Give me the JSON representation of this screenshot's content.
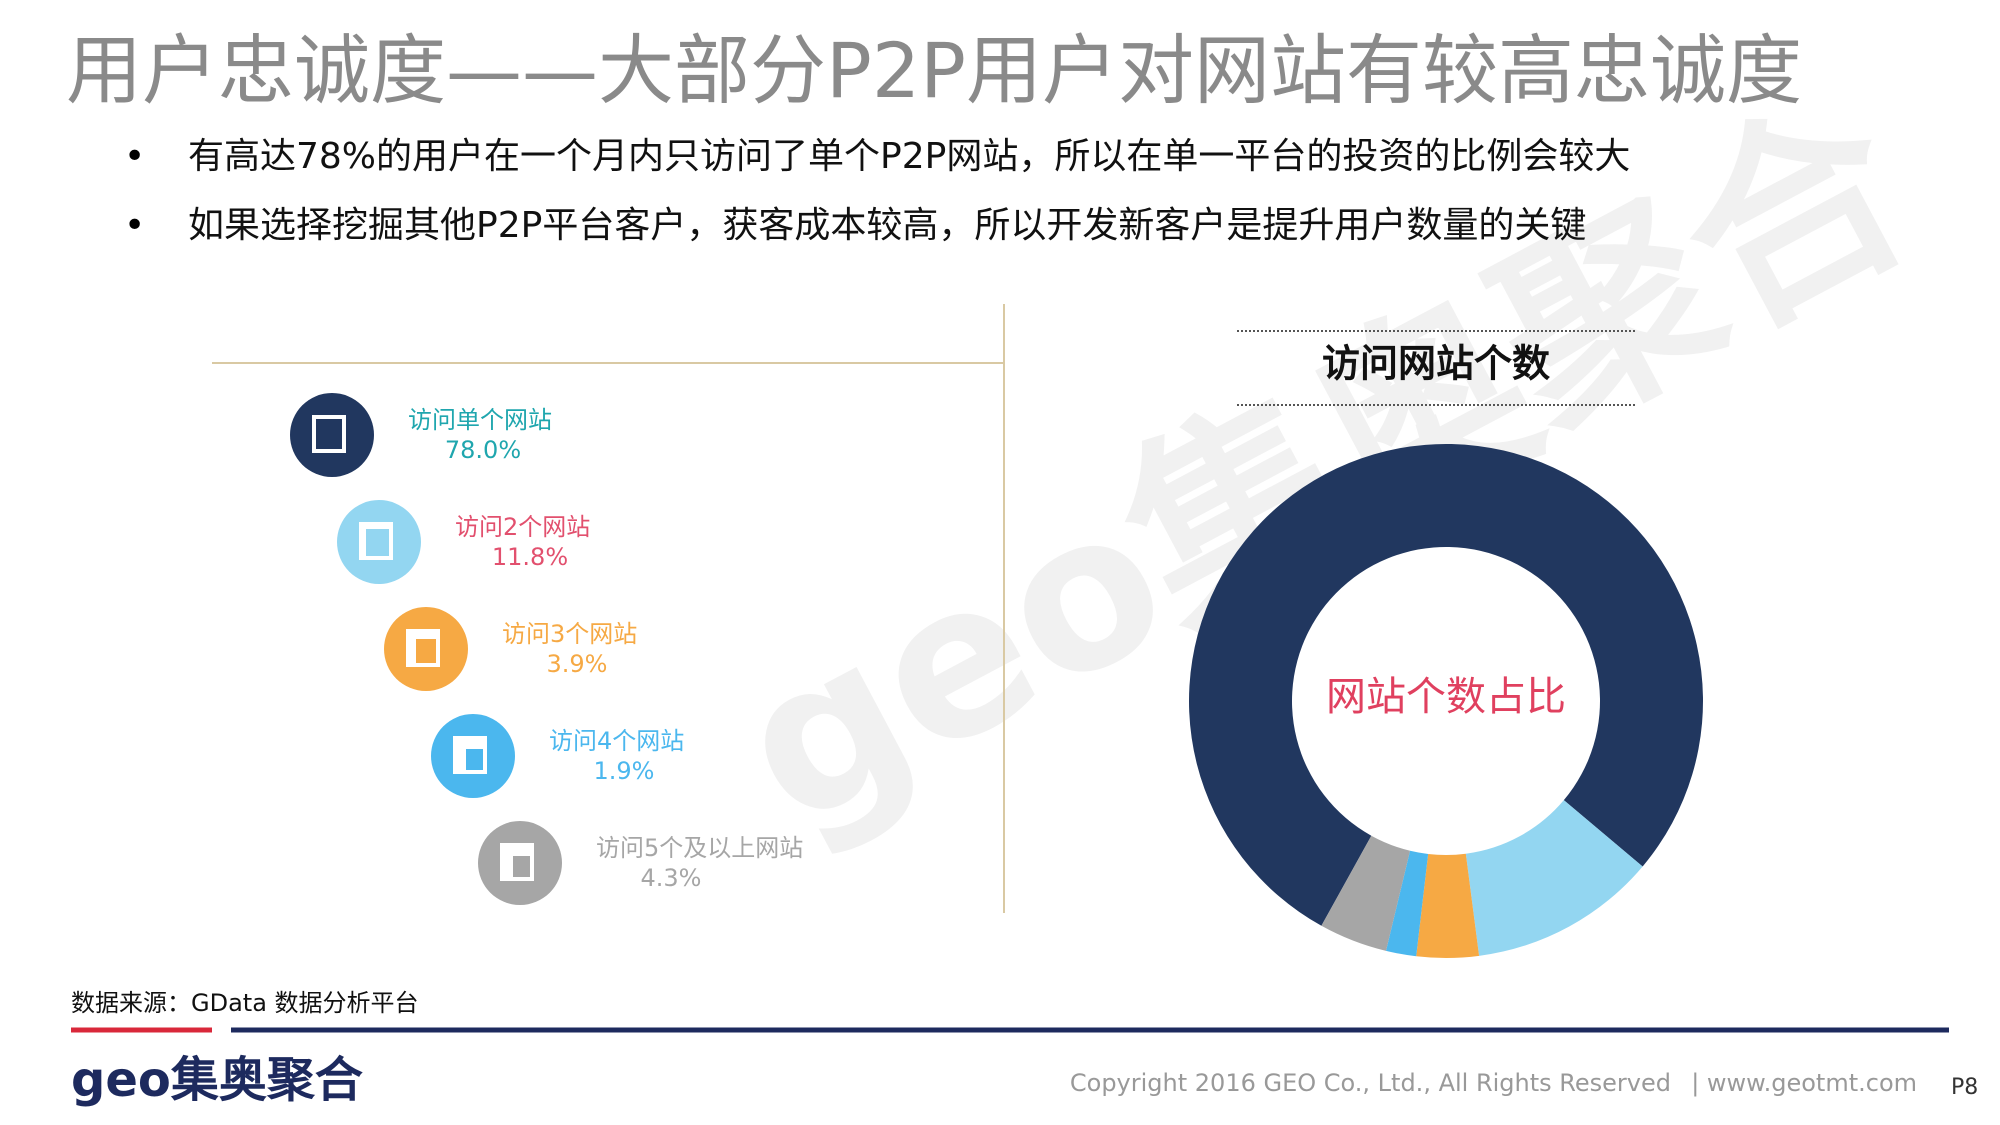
{
  "header": {
    "title": "用户忠诚度——大部分P2P用户对网站有较高忠诚度"
  },
  "bullets": [
    "有高达78%的用户在一个月内只访问了单个P2P网站，所以在单一平台的投资的比例会较大",
    "如果选择挖掘其他P2P平台客户，获客成本较高，所以开发新客户是提升用户数量的关键"
  ],
  "chart_data": {
    "type": "donut",
    "title": "访问网站个数",
    "center_label": "网站个数占比",
    "categories": [
      "访问单个网站",
      "访问2个网站",
      "访问3个网站",
      "访问4个网站",
      "访问5个及以上网站"
    ],
    "values": [
      78.0,
      11.8,
      3.9,
      1.9,
      4.3
    ],
    "value_labels": [
      "78.0%",
      "11.8%",
      "3.9%",
      "1.9%",
      "4.3%"
    ],
    "colors": [
      "#21375f",
      "#93d6f1",
      "#f6a944",
      "#4bb7ee",
      "#a6a6a6"
    ],
    "label_colors": [
      "#1fa6ae",
      "#e2506e",
      "#f6a944",
      "#4bb7ee",
      "#a6a6a6"
    ]
  },
  "source": "数据来源：GData  数据分析平台",
  "footer": {
    "logo": "geo集奥聚合",
    "copyright": "Copyright 2016 GEO Co., Ltd., All Rights Reserved",
    "site": "|  www.geotmt.com",
    "page": "P8"
  },
  "watermark": "geo集奥聚合"
}
